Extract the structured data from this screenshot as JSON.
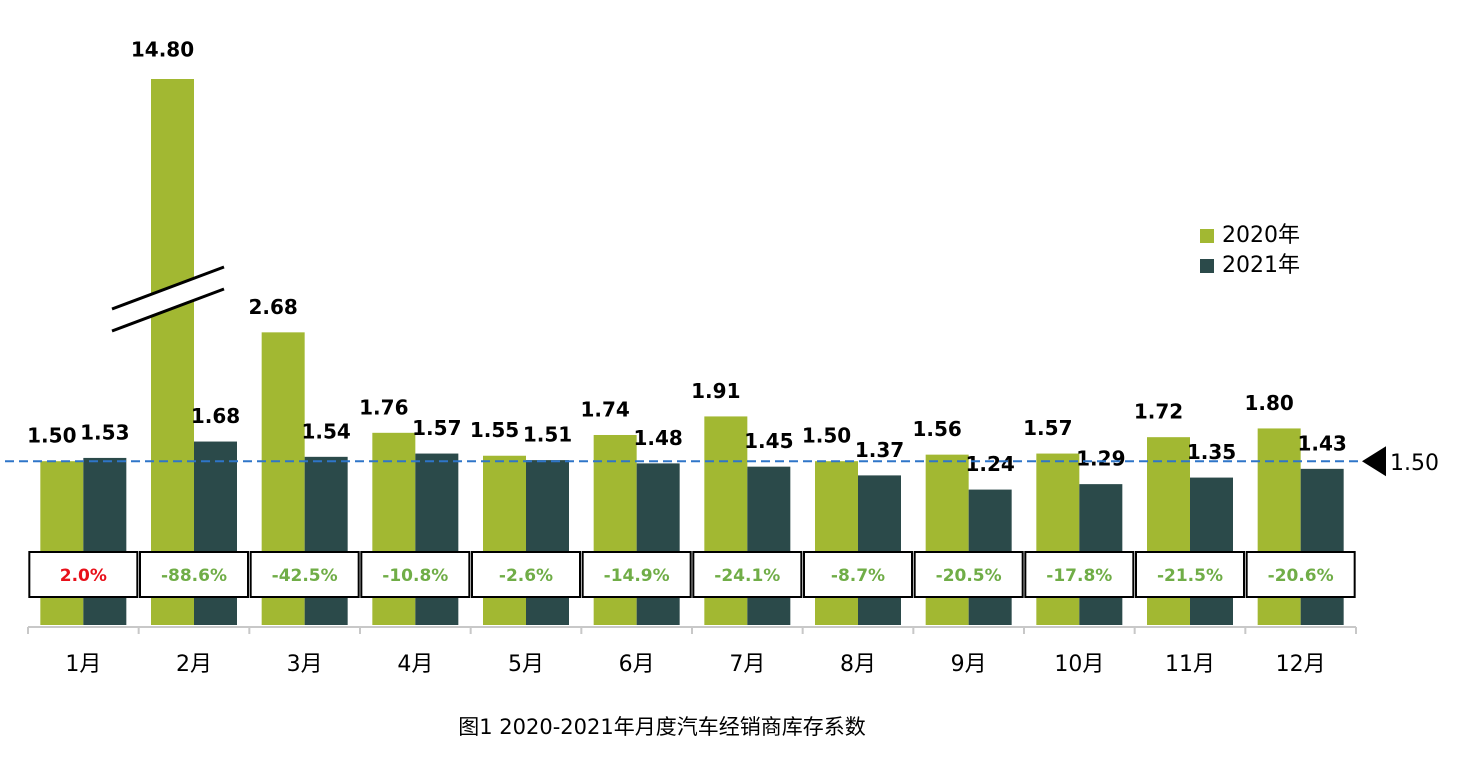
{
  "chart_data": {
    "type": "bar",
    "title": "图1  2020-2021年月度汽车经销商库存系数",
    "categories": [
      "1月",
      "2月",
      "3月",
      "4月",
      "5月",
      "6月",
      "7月",
      "8月",
      "9月",
      "10月",
      "11月",
      "12月"
    ],
    "series": [
      {
        "name": "2020年",
        "color": "#a2b832",
        "values": [
          1.5,
          14.8,
          2.68,
          1.76,
          1.55,
          1.74,
          1.91,
          1.5,
          1.56,
          1.57,
          1.72,
          1.8
        ],
        "value_labels": [
          "1.50",
          "14.80",
          "2.68",
          "1.76",
          "1.55",
          "1.74",
          "1.91",
          "1.50",
          "1.56",
          "1.57",
          "1.72",
          "1.80"
        ]
      },
      {
        "name": "2021年",
        "color": "#2b4a4a",
        "values": [
          1.53,
          1.68,
          1.54,
          1.57,
          1.51,
          1.48,
          1.45,
          1.37,
          1.24,
          1.29,
          1.35,
          1.43
        ],
        "value_labels": [
          "1.53",
          "1.68",
          "1.54",
          "1.57",
          "1.51",
          "1.48",
          "1.45",
          "1.37",
          "1.24",
          "1.29",
          "1.35",
          "1.43"
        ]
      }
    ],
    "changes": {
      "values": [
        2.0,
        -88.6,
        -42.5,
        -10.8,
        -2.6,
        -14.9,
        -24.1,
        -8.7,
        -20.5,
        -17.8,
        -21.5,
        -20.6
      ],
      "value_labels": [
        "2.0%",
        "-88.6%",
        "-42.5%",
        "-10.8%",
        "-2.6%",
        "-14.9%",
        "-24.1%",
        "-8.7%",
        "-20.5%",
        "-17.8%",
        "-21.5%",
        "-20.6%"
      ],
      "positive_color": "#e8101a",
      "negative_color": "#70ad47"
    },
    "reference_line": {
      "value": 1.5,
      "label": "1.50",
      "color": "#2e75c8"
    },
    "ylim": [
      0,
      5
    ],
    "legend": "right"
  }
}
